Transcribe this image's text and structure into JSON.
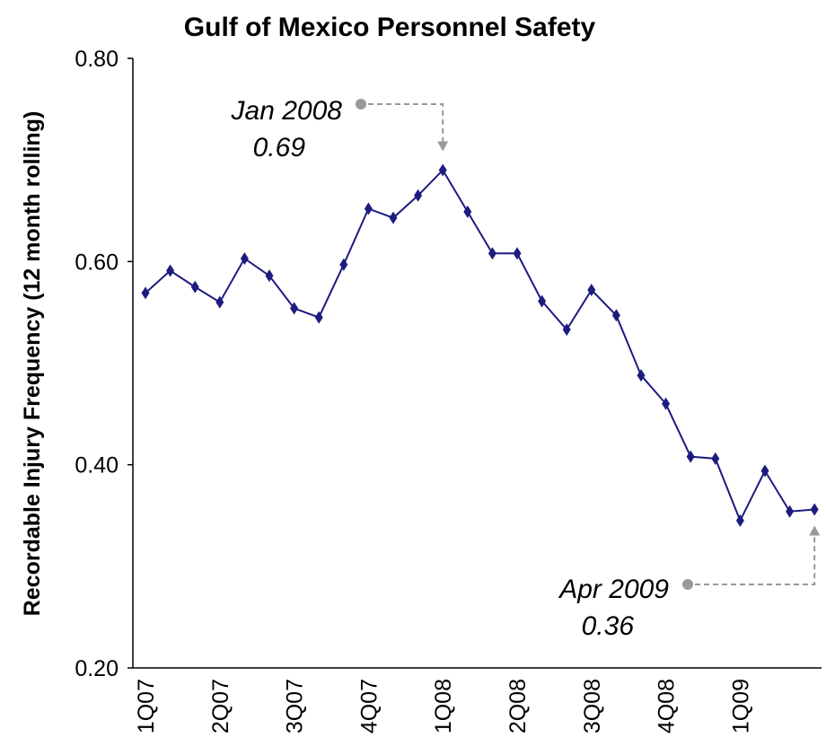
{
  "chart_data": {
    "type": "line",
    "title": "Gulf of Mexico Personnel Safety",
    "y_label": "Recordable Injury Frequency (12 month rolling)",
    "categories": [
      "1Q07",
      null,
      null,
      "2Q07",
      null,
      null,
      "3Q07",
      null,
      null,
      "4Q07",
      null,
      null,
      "1Q08",
      null,
      null,
      "2Q08",
      null,
      null,
      "3Q08",
      null,
      null,
      "4Q08",
      null,
      null,
      "1Q09",
      null,
      null,
      null
    ],
    "series": [
      {
        "name": "Recordable Injury Frequency",
        "color": "#1c1c80",
        "values": [
          0.569,
          0.591,
          0.575,
          0.56,
          0.603,
          0.586,
          0.554,
          0.545,
          0.597,
          0.652,
          0.643,
          0.665,
          0.69,
          0.649,
          0.608,
          0.608,
          0.561,
          0.533,
          0.572,
          0.547,
          0.488,
          0.46,
          0.408,
          0.406,
          0.345,
          0.394,
          0.354,
          0.356
        ]
      }
    ],
    "ylim": [
      0.2,
      0.8
    ],
    "yticks": [
      {
        "value": 0.2,
        "label": "0.20"
      },
      {
        "value": 0.4,
        "label": "0.40"
      },
      {
        "value": 0.6,
        "label": "0.60"
      },
      {
        "value": 0.8,
        "label": "0.80"
      }
    ],
    "annotations": [
      {
        "date": "Jan 2008",
        "value_text": "0.69",
        "index": 12
      },
      {
        "date": "Apr 2009",
        "value_text": "0.36",
        "index": 27
      }
    ]
  }
}
